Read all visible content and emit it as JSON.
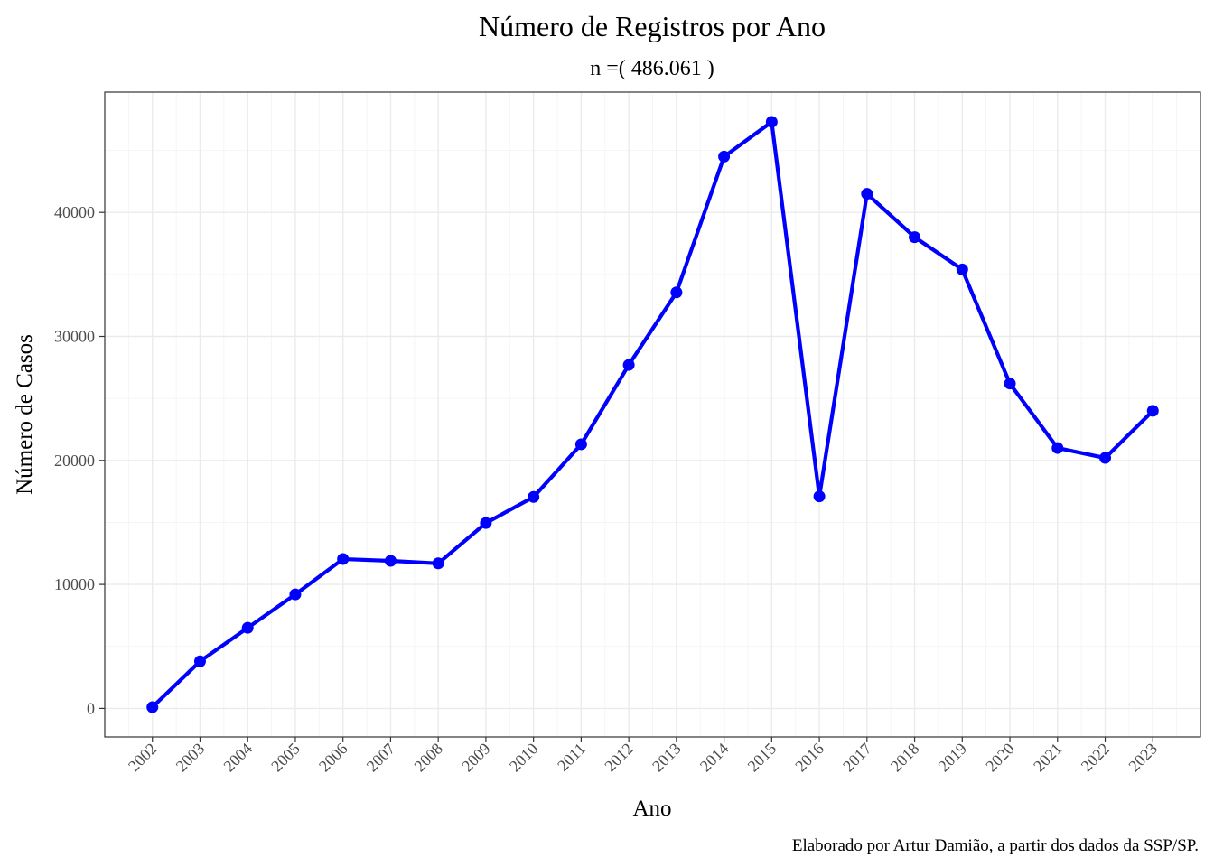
{
  "chart_data": {
    "type": "line",
    "title": "Número de Registros por Ano",
    "subtitle": "n =( 486.061 )",
    "xlabel": "Ano",
    "ylabel": "Número de Casos",
    "caption": "Elaborado por Artur Damião, a partir dos dados da SSP/SP.",
    "x": [
      2002,
      2003,
      2004,
      2005,
      2006,
      2007,
      2008,
      2009,
      2010,
      2011,
      2012,
      2013,
      2014,
      2015,
      2016,
      2017,
      2018,
      2019,
      2020,
      2021,
      2022,
      2023
    ],
    "x_tick_labels": [
      "2002",
      "2003",
      "2004",
      "2005",
      "2006",
      "2007",
      "2008",
      "2009",
      "2010",
      "2011",
      "2012",
      "2013",
      "2014",
      "2015",
      "2016",
      "2017",
      "2018",
      "2019",
      "2020",
      "2021",
      "2022",
      "2023"
    ],
    "series": [
      {
        "values": [
          100,
          3800,
          6500,
          9200,
          12050,
          11900,
          11700,
          14950,
          17050,
          21300,
          27700,
          33550,
          44500,
          47300,
          17100,
          41500,
          38000,
          35400,
          26200,
          21000,
          20200,
          24000
        ],
        "color": "#0000ff"
      }
    ],
    "y_ticks": [
      0,
      10000,
      20000,
      30000,
      40000
    ],
    "y_tick_labels": [
      "0",
      "10000",
      "20000",
      "30000",
      "40000"
    ],
    "xlim": [
      2001.0,
      2024.0
    ],
    "ylim": [
      -2300,
      49700
    ],
    "grid": true,
    "legend": "none"
  }
}
